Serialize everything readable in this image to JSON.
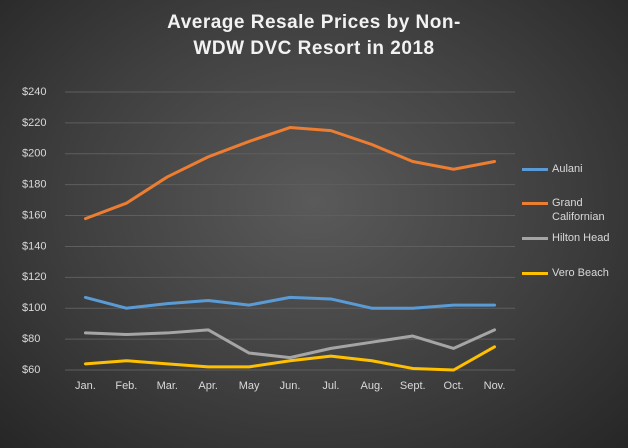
{
  "chart_data": {
    "type": "line",
    "title": "Average Resale Prices by Non-WDW DVC Resort in 2018",
    "categories": [
      "Jan.",
      "Feb.",
      "Mar.",
      "Apr.",
      "May",
      "Jun.",
      "Jul.",
      "Aug.",
      "Sept.",
      "Oct.",
      "Nov."
    ],
    "series": [
      {
        "name": "Aulani",
        "color": "#5b9bd5",
        "values": [
          107,
          100,
          103,
          105,
          102,
          107,
          106,
          100,
          100,
          102,
          102
        ]
      },
      {
        "name": "Grand Californian",
        "color": "#ed7d31",
        "values": [
          158,
          168,
          185,
          198,
          208,
          217,
          215,
          206,
          195,
          190,
          195
        ]
      },
      {
        "name": "Hilton Head",
        "color": "#a5a5a5",
        "values": [
          84,
          83,
          84,
          86,
          71,
          68,
          74,
          78,
          82,
          74,
          86
        ]
      },
      {
        "name": "Vero Beach",
        "color": "#ffc000",
        "values": [
          64,
          66,
          64,
          62,
          62,
          66,
          69,
          66,
          61,
          60,
          75
        ]
      }
    ],
    "ylim": [
      60,
      240
    ],
    "yticks": [
      {
        "value": 60,
        "label": "$60"
      },
      {
        "value": 80,
        "label": "$80"
      },
      {
        "value": 100,
        "label": "$100"
      },
      {
        "value": 120,
        "label": "$120"
      },
      {
        "value": 140,
        "label": "$140"
      },
      {
        "value": 160,
        "label": "$160"
      },
      {
        "value": 180,
        "label": "$180"
      },
      {
        "value": 200,
        "label": "$200"
      },
      {
        "value": 220,
        "label": "$220"
      },
      {
        "value": 240,
        "label": "$240"
      }
    ],
    "grid": true,
    "legend": "right"
  }
}
